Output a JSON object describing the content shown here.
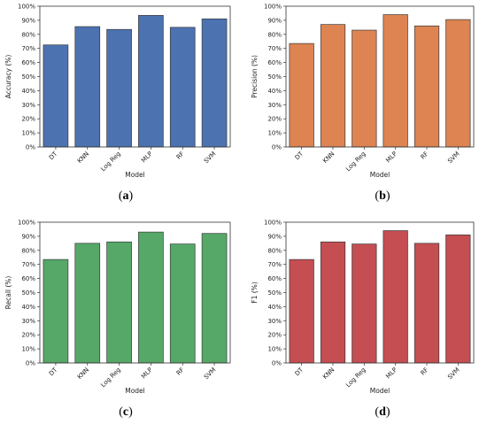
{
  "chart_data": [
    {
      "type": "bar",
      "caption": "a",
      "categories": [
        "DT",
        "KNN",
        "Log Reg",
        "MLP",
        "RF",
        "SVM"
      ],
      "values": [
        72.5,
        85.5,
        83.5,
        93.5,
        85,
        91
      ],
      "xlabel": "Model",
      "ylabel": "Accuracy (%)",
      "ylim": [
        0,
        100
      ],
      "yticks": [
        "0%",
        "10%",
        "20%",
        "30%",
        "40%",
        "50%",
        "60%",
        "70%",
        "80%",
        "90%",
        "100%"
      ],
      "color": "#4c72b0",
      "grid": false
    },
    {
      "type": "bar",
      "caption": "b",
      "categories": [
        "DT",
        "KNN",
        "Log Reg",
        "MLP",
        "RF",
        "SVM"
      ],
      "values": [
        73.5,
        87,
        83,
        94,
        86,
        90.5
      ],
      "xlabel": "Model",
      "ylabel": "Precision (%)",
      "ylim": [
        0,
        100
      ],
      "yticks": [
        "0%",
        "10%",
        "20%",
        "30%",
        "40%",
        "50%",
        "60%",
        "70%",
        "80%",
        "90%",
        "100%"
      ],
      "color": "#dd8452",
      "grid": false
    },
    {
      "type": "bar",
      "caption": "c",
      "categories": [
        "DT",
        "KNN",
        "Log Reg",
        "MLP",
        "RF",
        "SVM"
      ],
      "values": [
        73.5,
        85,
        86,
        93,
        84.5,
        92
      ],
      "xlabel": "Model",
      "ylabel": "Recall (%)",
      "ylim": [
        0,
        100
      ],
      "yticks": [
        "0%",
        "10%",
        "20%",
        "30%",
        "40%",
        "50%",
        "60%",
        "70%",
        "80%",
        "90%",
        "100%"
      ],
      "color": "#55a868",
      "grid": false
    },
    {
      "type": "bar",
      "caption": "d",
      "categories": [
        "DT",
        "KNN",
        "Log Reg",
        "MLP",
        "RF",
        "SVM"
      ],
      "values": [
        73.5,
        86,
        84.5,
        94,
        85,
        91
      ],
      "xlabel": "Model",
      "ylabel": "F1 (%)",
      "ylim": [
        0,
        100
      ],
      "yticks": [
        "0%",
        "10%",
        "20%",
        "30%",
        "40%",
        "50%",
        "60%",
        "70%",
        "80%",
        "90%",
        "100%"
      ],
      "color": "#c44e52",
      "grid": false
    }
  ]
}
